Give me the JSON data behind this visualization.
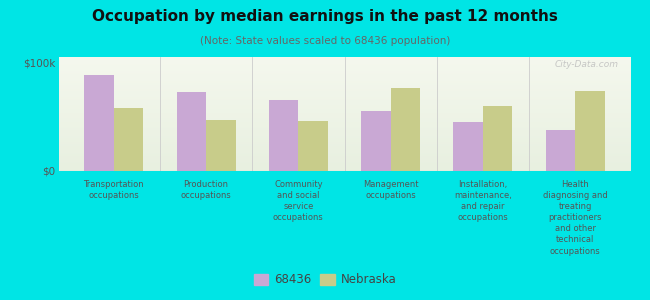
{
  "title": "Occupation by median earnings in the past 12 months",
  "subtitle": "(Note: State values scaled to 68436 population)",
  "background_color": "#00e5e5",
  "bar_color_local": "#c9a8d4",
  "bar_color_state": "#c8cc8a",
  "categories": [
    "Transportation\noccupations",
    "Production\noccupations",
    "Community\nand social\nservice\noccupations",
    "Management\noccupations",
    "Installation,\nmaintenance,\nand repair\noccupations",
    "Health\ndiagnosing and\ntreating\npractitioners\nand other\ntechnical\noccupations"
  ],
  "values_local": [
    88000,
    73000,
    65000,
    55000,
    45000,
    38000
  ],
  "values_state": [
    58000,
    47000,
    46000,
    76000,
    60000,
    74000
  ],
  "ylim": [
    0,
    105000
  ],
  "yticks": [
    0,
    100000
  ],
  "ytick_labels": [
    "$0",
    "$100k"
  ],
  "legend_labels": [
    "68436",
    "Nebraska"
  ],
  "watermark": "City-Data.com",
  "plot_bg_left": "#f5f7e8",
  "plot_bg_right": "#e8f2e8"
}
